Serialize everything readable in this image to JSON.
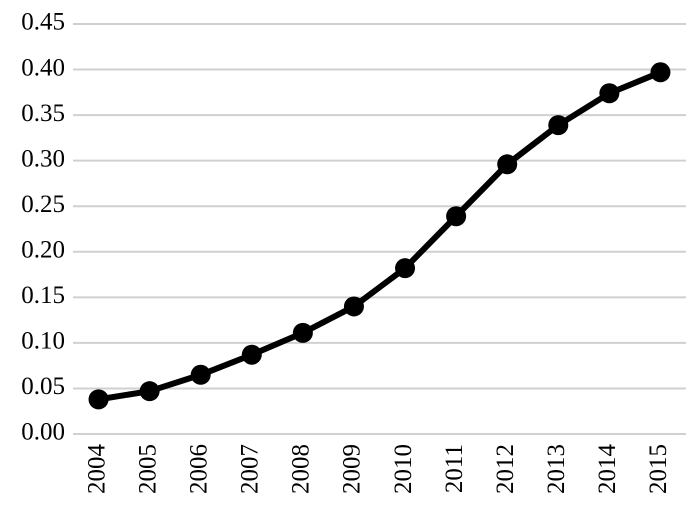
{
  "chart_data": {
    "type": "line",
    "categories": [
      "2004",
      "2005",
      "2006",
      "2007",
      "2008",
      "2009",
      "2010",
      "2011",
      "2012",
      "2013",
      "2014",
      "2015"
    ],
    "values": [
      0.038,
      0.047,
      0.065,
      0.087,
      0.111,
      0.14,
      0.182,
      0.239,
      0.296,
      0.339,
      0.374,
      0.397
    ],
    "color": "#000000",
    "ylim": [
      0,
      0.45
    ],
    "yticks": [
      {
        "value": 0,
        "label": "0.00"
      },
      0.05,
      {
        "value": 0.1,
        "label": "0.10"
      },
      0.15,
      {
        "value": 0.2,
        "label": "0.20"
      },
      0.25,
      {
        "value": 0.3,
        "label": "0.30"
      },
      0.35,
      {
        "value": 0.4,
        "label": "0.40"
      },
      0.45
    ],
    "grid": true
  }
}
